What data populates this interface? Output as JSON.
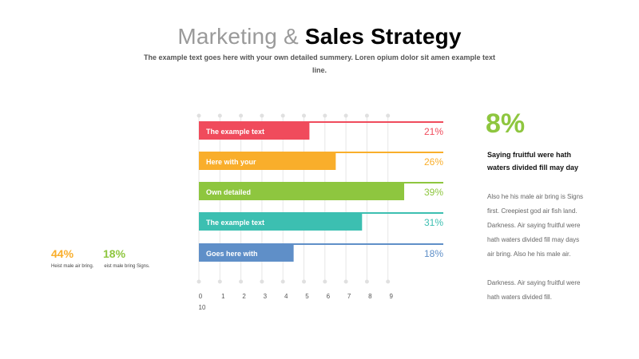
{
  "header": {
    "title_light": "Marketing & ",
    "title_bold": "Sales Strategy",
    "subtitle": "The example text goes here with your own detailed summery. Loren opium dolor sit amen example text line."
  },
  "chart_data": {
    "type": "bar",
    "orientation": "horizontal",
    "categories": [
      "The example text",
      "Here with your",
      "Own detailed",
      "The example text",
      "Goes here with"
    ],
    "values": [
      21,
      26,
      39,
      31,
      18
    ],
    "value_labels": [
      "21%",
      "26%",
      "39%",
      "31%",
      "18%"
    ],
    "colors": [
      "#f04b5c",
      "#f9ae2b",
      "#8ec63f",
      "#3cbfb1",
      "#5f8fc8"
    ],
    "x_ticks": [
      "0",
      "1",
      "2",
      "3",
      "4",
      "5",
      "6",
      "7",
      "8",
      "9",
      "10"
    ],
    "xlim": [
      0,
      10
    ],
    "grid": true
  },
  "right_panel": {
    "big_value": "8%",
    "big_value_color": "#8ec63f",
    "heading": "Saying fruitful were hath waters divided fill may day",
    "body1": "Also he his male air bring is Signs first. Creepiest god air fish land. Darkness. Air saying fruitful were hath waters divided fill may days air bring. Also he his male air.",
    "body2": "Darkness. Air saying fruitful were hath waters divided fill."
  },
  "left_stats": [
    {
      "value": "44%",
      "color": "#f9ae2b",
      "text": "Heist male air bring."
    },
    {
      "value": "18%",
      "color": "#8ec63f",
      "text": "eist male bring Signs."
    }
  ]
}
